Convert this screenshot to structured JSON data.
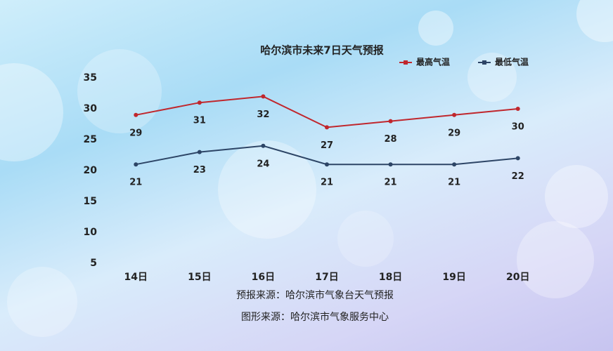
{
  "chart_data": {
    "type": "line",
    "title": "哈尔滨市未来7日天气预报",
    "categories": [
      "14日",
      "15日",
      "16日",
      "17日",
      "18日",
      "19日",
      "20日"
    ],
    "series": [
      {
        "name": "最高气温",
        "color": "#c0272d",
        "values": [
          29,
          31,
          32,
          27,
          28,
          29,
          30
        ]
      },
      {
        "name": "最低气温",
        "color": "#2d4566",
        "values": [
          21,
          23,
          24,
          21,
          21,
          21,
          22
        ]
      }
    ],
    "ylim": [
      5,
      35
    ],
    "yticks": [
      5,
      10,
      15,
      20,
      25,
      30,
      35
    ],
    "grid": false,
    "legend": "top-right",
    "notes": [
      "预报来源：哈尔滨市气象台天气预报",
      "图形来源：哈尔滨市气象服务中心"
    ]
  }
}
